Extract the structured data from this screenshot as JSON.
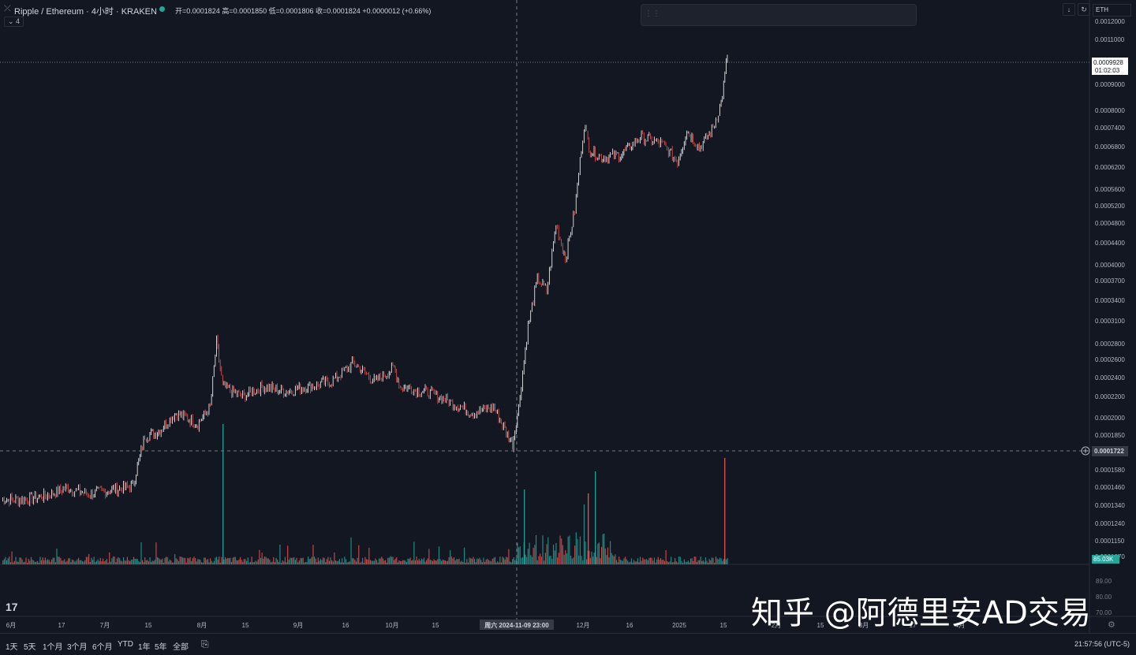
{
  "header": {
    "symbol": "Ripple / Ethereum · 4小时 · KRAKEN",
    "ohlc_open": "开=0.0001824",
    "ohlc_high": "高=0.0001850",
    "ohlc_low": "低=0.0001806",
    "ohlc_close": "收=0.0001824",
    "ohlc_change": "+0.0000012 (+0.66%)",
    "collapse_label": "4",
    "currency": "ETH"
  },
  "colors": {
    "background": "#131722",
    "up": "#ffffff",
    "down": "#ef5350",
    "vol_up": "#26a69a",
    "vol_down": "#ef5350",
    "text": "#d1d4dc",
    "grid": "#2a2e39"
  },
  "drawing_tools": [
    "trend-line-icon",
    "vertical-text-icon",
    "path-icon",
    "horizontal-line-icon",
    "horizontal-ray-icon",
    "parallel-channel-icon",
    "fib-retracement-icon",
    "fib-extension-icon",
    "brush-icon",
    "rectangle-icon",
    "vertical-line-icon",
    "circle-icon",
    "crosshair-grid-icon"
  ],
  "chart_data": {
    "type": "line",
    "x_tick_labels": [
      "6月",
      "17",
      "7月",
      "15",
      "8月",
      "15",
      "9月",
      "16",
      "10月",
      "15",
      "周六 2024-11-09  23:00",
      "12月",
      "16",
      "2025",
      "15",
      "2月",
      "15",
      "3月",
      "17",
      "4月"
    ],
    "y_tick_labels": [
      "0.0012000",
      "0.0011000",
      "0.0009000",
      "0.0008000",
      "0.0007400",
      "0.0006800",
      "0.0006200",
      "0.0005600",
      "0.0005200",
      "0.0004800",
      "0.0004400",
      "0.0004000",
      "0.0003700",
      "0.0003400",
      "0.0003100",
      "0.0002800",
      "0.0002600",
      "0.0002400",
      "0.0002200",
      "0.0002000",
      "0.0001850",
      "0.0001580",
      "0.0001460",
      "0.0001340",
      "0.0001240",
      "0.0001150",
      "0.0001070"
    ],
    "current_price": "0.0009928",
    "countdown": "01:02:03",
    "crosshair_price": "0.0001722",
    "volume_label": "85.03K",
    "volume_axis_labels": [
      "89.00",
      "80.00",
      "70.00"
    ],
    "ylim": [
      0.000105,
      0.00122
    ],
    "log_scale": true,
    "series": [
      {
        "values_by_date": [
          [
            "2024-05-29",
            0.00014
          ],
          [
            "2024-06-05",
            0.0001395
          ],
          [
            "2024-06-12",
            0.000142
          ],
          [
            "2024-06-19",
            0.000147
          ],
          [
            "2024-06-26",
            0.000143
          ],
          [
            "2024-07-03",
            0.000146
          ],
          [
            "2024-07-10",
            0.000148
          ],
          [
            "2024-07-14",
            0.000185
          ],
          [
            "2024-07-18",
            0.000188
          ],
          [
            "2024-07-24",
            0.000205
          ],
          [
            "2024-07-31",
            0.000195
          ],
          [
            "2024-08-04",
            0.00021
          ],
          [
            "2024-08-06",
            0.00028
          ],
          [
            "2024-08-08",
            0.00023
          ],
          [
            "2024-08-14",
            0.00022
          ],
          [
            "2024-08-21",
            0.00023
          ],
          [
            "2024-08-28",
            0.000225
          ],
          [
            "2024-09-04",
            0.00023
          ],
          [
            "2024-09-12",
            0.000235
          ],
          [
            "2024-09-19",
            0.000255
          ],
          [
            "2024-09-26",
            0.000235
          ],
          [
            "2024-09-30",
            0.000245
          ],
          [
            "2024-10-02",
            0.00025
          ],
          [
            "2024-10-04",
            0.00023
          ],
          [
            "2024-10-12",
            0.000225
          ],
          [
            "2024-10-20",
            0.000215
          ],
          [
            "2024-10-27",
            0.000205
          ],
          [
            "2024-11-03",
            0.00021
          ],
          [
            "2024-11-09",
            0.000178
          ],
          [
            "2024-11-11",
            0.00021
          ],
          [
            "2024-11-14",
            0.0003
          ],
          [
            "2024-11-17",
            0.00037
          ],
          [
            "2024-11-20",
            0.00035
          ],
          [
            "2024-11-23",
            0.00047
          ],
          [
            "2024-11-26",
            0.000405
          ],
          [
            "2024-11-29",
            0.0005
          ],
          [
            "2024-12-02",
            0.00073
          ],
          [
            "2024-12-04",
            0.00065
          ],
          [
            "2024-12-08",
            0.00063
          ],
          [
            "2024-12-14",
            0.00064
          ],
          [
            "2024-12-20",
            0.00069
          ],
          [
            "2024-12-27",
            0.00067
          ],
          [
            "2025-01-01",
            0.00062
          ],
          [
            "2025-01-04",
            0.00071
          ],
          [
            "2025-01-08",
            0.00066
          ],
          [
            "2025-01-12",
            0.00071
          ],
          [
            "2025-01-15",
            0.0008
          ],
          [
            "2025-01-17",
            0.00099
          ]
        ]
      }
    ]
  },
  "periods": [
    "1天",
    "5天",
    "1个月",
    "3个月",
    "6个月",
    "YTD",
    "1年",
    "5年",
    "全部"
  ],
  "clock": "21:57:56 (UTC-5)",
  "watermark": "知乎 @阿德里安AD交易",
  "tv_logo": "17"
}
